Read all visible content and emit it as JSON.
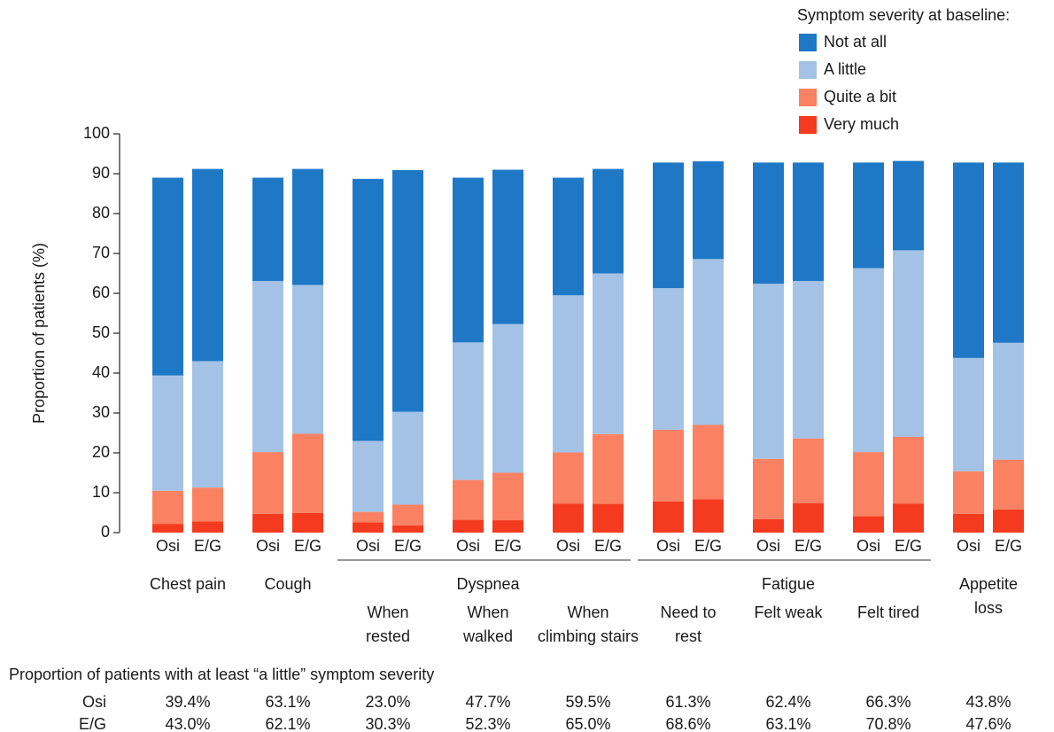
{
  "chart_data": {
    "type": "stacked_bar",
    "y_label": "Proportion of patients (%)",
    "legend_title": "Symptom severity at baseline:",
    "categories": [
      "Osi",
      "E/G",
      "Osi",
      "E/G",
      "Osi",
      "E/G",
      "Osi",
      "E/G",
      "Osi",
      "E/G",
      "Osi",
      "E/G",
      "Osi",
      "E/G",
      "Osi",
      "E/G",
      "Osi",
      "E/G"
    ],
    "groups": [
      {
        "label": [
          "Chest pain"
        ]
      },
      {
        "label": [
          "Cough"
        ]
      },
      {
        "label": [
          "Dyspnea"
        ],
        "subgroups": [
          [
            "When",
            "rested"
          ],
          [
            "When",
            "walked"
          ],
          [
            "When",
            "climbing stairs"
          ]
        ]
      },
      {
        "label": [
          "Fatigue"
        ],
        "subgroups": [
          [
            "Need to",
            "rest"
          ],
          [
            "Felt weak"
          ],
          [
            "Felt tired"
          ]
        ]
      },
      {
        "label": [
          "Appetite",
          "loss"
        ]
      }
    ],
    "series": [
      {
        "name": "Not at all",
        "color": "#1f78c6",
        "values": [
          49.6,
          48.2,
          25.9,
          29.1,
          65.7,
          60.6,
          41.3,
          38.7,
          29.5,
          26.2,
          31.5,
          24.5,
          30.4,
          29.7,
          26.5,
          22.4,
          49.0,
          45.2
        ]
      },
      {
        "name": "A little",
        "color": "#a4c2e6",
        "values": [
          28.9,
          31.7,
          42.9,
          37.3,
          17.8,
          23.3,
          34.5,
          37.3,
          39.4,
          40.3,
          35.5,
          41.6,
          43.9,
          39.5,
          46.1,
          46.8,
          28.4,
          29.3
        ]
      },
      {
        "name": "Quite a bit",
        "color": "#fa8162",
        "values": [
          8.3,
          8.5,
          15.5,
          19.9,
          2.6,
          5.2,
          10.0,
          11.9,
          12.8,
          17.5,
          18.0,
          18.6,
          15.1,
          16.2,
          16.1,
          16.7,
          10.7,
          12.5
        ]
      },
      {
        "name": "Very much",
        "color": "#f53b1f",
        "values": [
          2.2,
          2.8,
          4.7,
          4.9,
          2.6,
          1.8,
          3.2,
          3.1,
          7.3,
          7.2,
          7.8,
          8.4,
          3.4,
          7.4,
          4.1,
          7.3,
          4.7,
          5.8
        ]
      }
    ],
    "ylim": [
      0,
      100
    ],
    "yticks": [
      0,
      10,
      20,
      30,
      40,
      50,
      60,
      70,
      80,
      90,
      100
    ],
    "grid": false
  },
  "table": {
    "title": "Proportion of patients with at least “a little” symptom severity",
    "rows": [
      {
        "name": "Osi",
        "values": [
          "39.4%",
          "63.1%",
          "23.0%",
          "47.7%",
          "59.5%",
          "61.3%",
          "62.4%",
          "66.3%",
          "43.8%"
        ]
      },
      {
        "name": "E/G",
        "values": [
          "43.0%",
          "62.1%",
          "30.3%",
          "52.3%",
          "65.0%",
          "68.6%",
          "63.1%",
          "70.8%",
          "47.6%"
        ]
      }
    ]
  }
}
